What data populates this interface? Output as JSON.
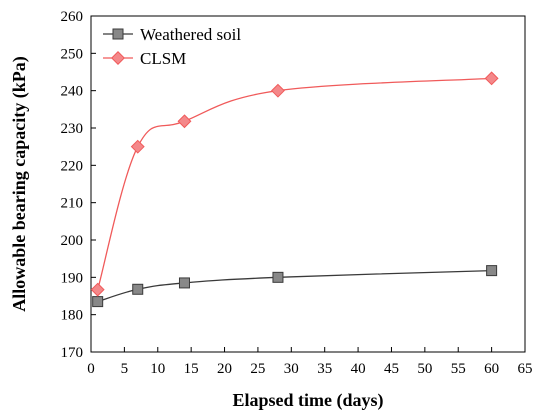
{
  "chart_data": {
    "type": "line",
    "title": "",
    "xlabel": "Elapsed time (days)",
    "ylabel": "Allowable bearing capacity (kPa)",
    "xlim": [
      0,
      65
    ],
    "ylim": [
      170,
      260
    ],
    "xticks": [
      0,
      5,
      10,
      15,
      20,
      25,
      30,
      35,
      40,
      45,
      50,
      55,
      60,
      65
    ],
    "yticks": [
      170,
      180,
      190,
      200,
      210,
      220,
      230,
      240,
      250,
      260
    ],
    "grid": false,
    "legend_position": "top-left",
    "series": [
      {
        "name": "Weathered soil",
        "marker": "square",
        "line_color": "#3a3a3a",
        "marker_color": "#888888",
        "x": [
          1,
          7,
          14,
          28,
          60
        ],
        "y": [
          183.5,
          186.8,
          188.5,
          190.0,
          191.8
        ]
      },
      {
        "name": "CLSM",
        "marker": "diamond",
        "line_color": "#f05a5a",
        "marker_color": "#f4888a",
        "x": [
          1,
          7,
          14,
          28,
          60
        ],
        "y": [
          186.7,
          225.0,
          231.8,
          240.0,
          243.3
        ]
      }
    ]
  }
}
